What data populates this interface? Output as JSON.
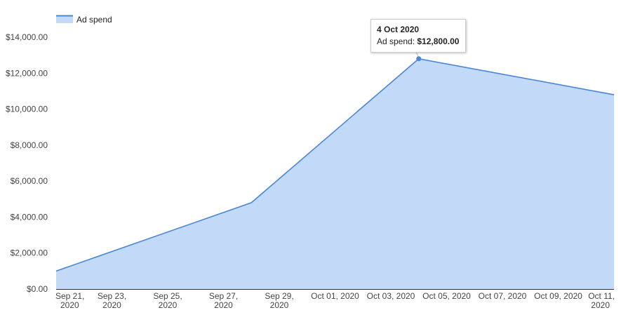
{
  "chart_data": {
    "type": "area",
    "legend": {
      "label": "Ad spend",
      "position": "top-left"
    },
    "x_ticks": [
      [
        "Sep 21,",
        "2020"
      ],
      [
        "Sep 23,",
        "2020"
      ],
      [
        "Sep 25,",
        "2020"
      ],
      [
        "Sep 27,",
        "2020"
      ],
      [
        "Sep 29,",
        "2020"
      ],
      [
        "Oct 01, 2020"
      ],
      [
        "Oct 03, 2020"
      ],
      [
        "Oct 05, 2020"
      ],
      [
        "Oct 07, 2020"
      ],
      [
        "Oct 09, 2020"
      ],
      [
        "Oct 11,",
        "2020"
      ]
    ],
    "y_ticks": [
      "$0.00",
      "$2,000.00",
      "$4,000.00",
      "$6,000.00",
      "$8,000.00",
      "$10,000.00",
      "$12,000.00",
      "$14,000.00"
    ],
    "ylim": [
      0,
      14000
    ],
    "xlim": [
      "2020-09-21",
      "2020-10-11"
    ],
    "series": [
      {
        "name": "Ad spend",
        "points": [
          {
            "x": "2020-09-21",
            "y": 1000
          },
          {
            "x": "2020-09-28",
            "y": 4800
          },
          {
            "x": "2020-10-04",
            "y": 12800
          },
          {
            "x": "2020-10-11",
            "y": 10800
          }
        ]
      }
    ],
    "colors": {
      "line": "#4a86d6",
      "fill": "#c2d9f7",
      "axis": "#333333"
    },
    "tooltip": {
      "date": "4 Oct 2020",
      "label": "Ad spend: ",
      "value": "$12,800.00",
      "point_x": "2020-10-04"
    }
  }
}
